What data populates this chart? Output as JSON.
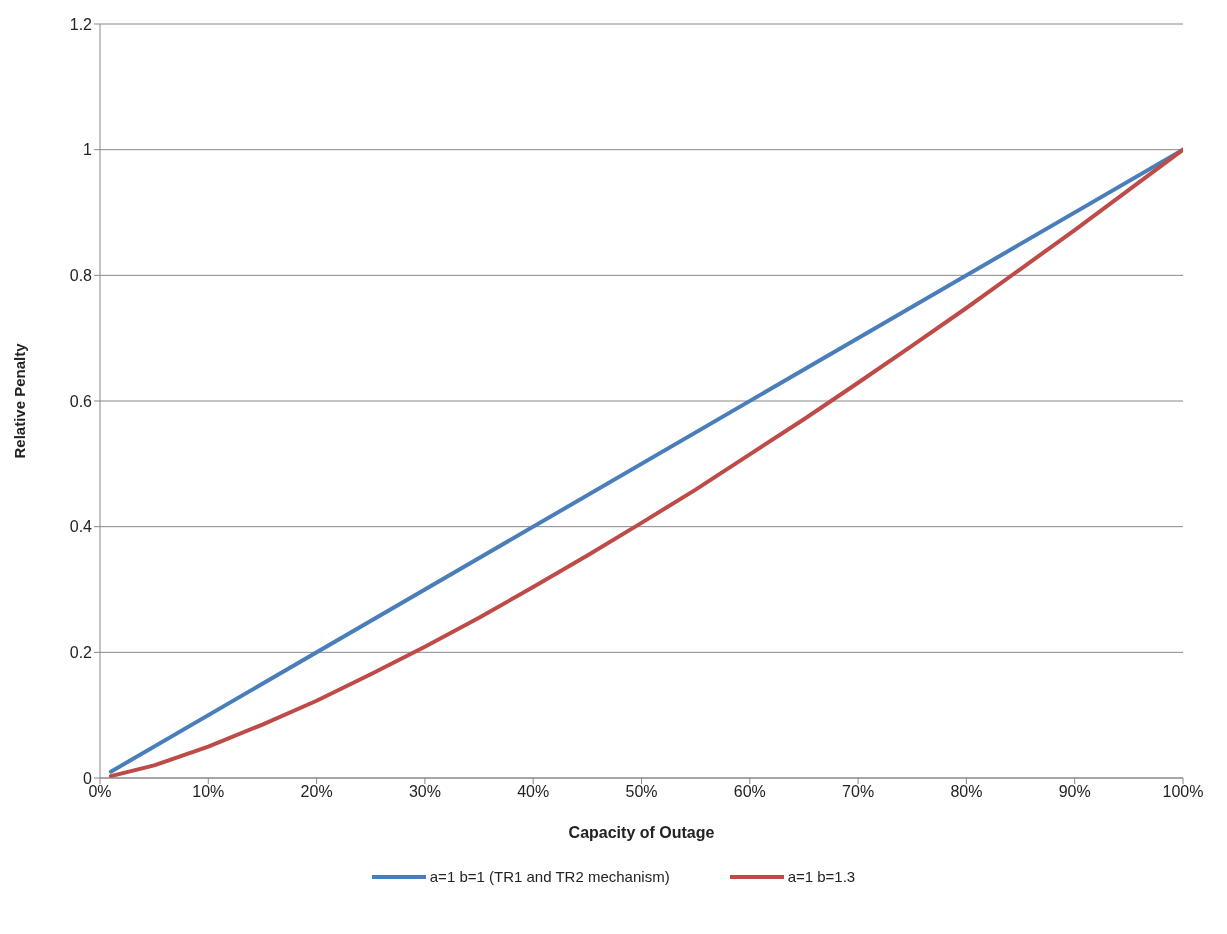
{
  "chart_data": {
    "type": "line",
    "xlabel": "Capacity of Outage",
    "ylabel": "Relative Penalty",
    "series": [
      {
        "name": "a=1 b=1 (TR1 and TR2 mechanism)",
        "color": "#4a7ebb",
        "x": [
          1,
          100
        ],
        "values": [
          0.01,
          1
        ]
      },
      {
        "name": "a=1 b=1.3",
        "color": "#be4b48",
        "x": [
          1,
          5,
          10,
          15,
          20,
          25,
          30,
          35,
          40,
          45,
          50,
          55,
          60,
          65,
          70,
          75,
          80,
          85,
          90,
          95,
          100
        ],
        "values": [
          0.003,
          0.02,
          0.05,
          0.085,
          0.123,
          0.165,
          0.209,
          0.255,
          0.304,
          0.354,
          0.406,
          0.459,
          0.515,
          0.571,
          0.629,
          0.688,
          0.748,
          0.81,
          0.872,
          0.936,
          1
        ]
      }
    ],
    "xlim": [
      0,
      100
    ],
    "xticks": [
      {
        "value": 0,
        "label": "0%"
      },
      {
        "value": 10,
        "label": "10%"
      },
      {
        "value": 20,
        "label": "20%"
      },
      {
        "value": 30,
        "label": "30%"
      },
      {
        "value": 40,
        "label": "40%"
      },
      {
        "value": 50,
        "label": "50%"
      },
      {
        "value": 60,
        "label": "60%"
      },
      {
        "value": 70,
        "label": "70%"
      },
      {
        "value": 80,
        "label": "80%"
      },
      {
        "value": 90,
        "label": "90%"
      },
      {
        "value": 100,
        "label": "100%"
      }
    ],
    "ylim": [
      0,
      1.2
    ],
    "yticks": [
      0,
      0.2,
      0.4,
      0.6,
      0.8,
      1,
      {
        "value": 1.2,
        "label": "1.2"
      }
    ],
    "grid": "y",
    "legend": "bottom",
    "marker": "none",
    "line_style": "solid"
  }
}
